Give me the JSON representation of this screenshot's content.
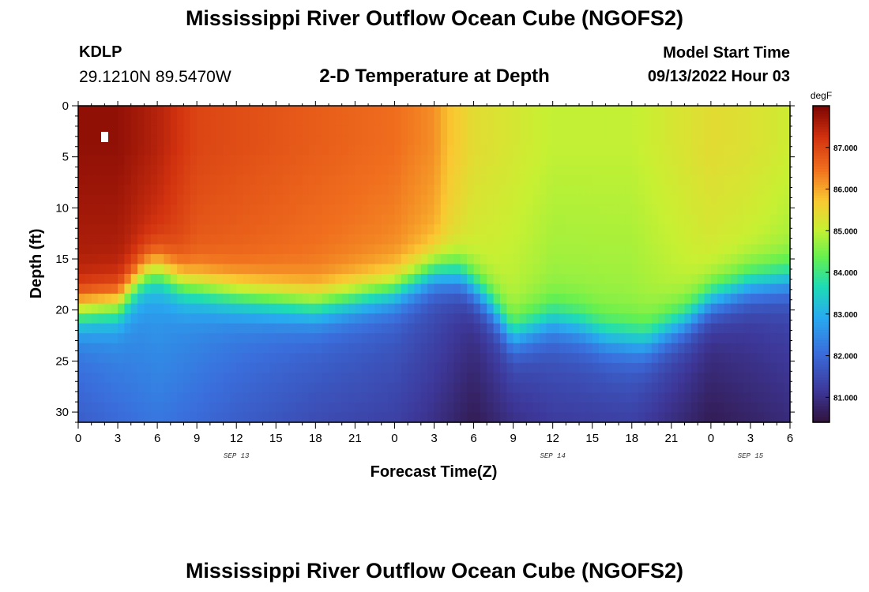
{
  "header": {
    "title": "Mississippi River Outflow Ocean Cube (NGOFS2)",
    "station_id": "KDLP",
    "station_coords": "29.1210N  89.5470W",
    "subtitle": "2-D Temperature at Depth",
    "start_label": "Model Start Time",
    "start_value": "09/13/2022 Hour 03"
  },
  "footer": {
    "title": "Mississippi River Outflow Ocean Cube (NGOFS2)"
  },
  "chart_data": {
    "type": "heatmap",
    "title": "2-D Temperature at Depth",
    "xlabel": "Forecast Time(Z)",
    "ylabel": "Depth (ft)",
    "x_range_hours": [
      0,
      54
    ],
    "y_range_ft": [
      0,
      31
    ],
    "x_tick_labels": [
      "0",
      "3",
      "6",
      "9",
      "12",
      "15",
      "18",
      "21",
      "0",
      "3",
      "6",
      "9",
      "12",
      "15",
      "18",
      "21",
      "0",
      "3",
      "6"
    ],
    "x_tick_hours": [
      0,
      3,
      6,
      9,
      12,
      15,
      18,
      21,
      24,
      27,
      30,
      33,
      36,
      39,
      42,
      45,
      48,
      51,
      54
    ],
    "date_labels": [
      {
        "hour": 12,
        "text": "SEP 13"
      },
      {
        "hour": 36,
        "text": "SEP 14"
      },
      {
        "hour": 51,
        "text": "SEP 15"
      }
    ],
    "y_ticks": [
      0,
      5,
      10,
      15,
      20,
      25,
      30
    ],
    "colorbar": {
      "units": "degF",
      "range": [
        80.4,
        88.0
      ],
      "ticks": [
        81.0,
        82.0,
        83.0,
        84.0,
        85.0,
        86.0,
        87.0
      ],
      "tick_labels": [
        "81.000",
        "82.000",
        "83.000",
        "84.000",
        "85.000",
        "86.000",
        "87.000"
      ]
    },
    "interface_depth_ft": {
      "hours": [
        0,
        3,
        5,
        6,
        8,
        12,
        18,
        24,
        27,
        29,
        31,
        33,
        35,
        36,
        38,
        40,
        43,
        46,
        48,
        51,
        54
      ],
      "depths": [
        20,
        19.5,
        16.5,
        16,
        17.5,
        18.5,
        19.5,
        18,
        16.2,
        16.5,
        19,
        22.5,
        21.5,
        21,
        21.5,
        22.5,
        23,
        21,
        19,
        17.5,
        17
      ]
    },
    "surface_temperature_degF": {
      "hours": [
        0,
        3,
        6,
        9,
        12,
        15,
        18,
        21,
        24,
        27,
        28,
        30,
        33,
        36,
        39,
        42,
        45,
        48,
        51,
        54
      ],
      "values": [
        87.8,
        87.8,
        87.5,
        87.0,
        86.9,
        86.8,
        86.7,
        86.6,
        86.5,
        86.2,
        85.8,
        85.4,
        85.2,
        85.0,
        85.0,
        85.0,
        85.2,
        85.4,
        85.3,
        85.1
      ]
    },
    "bottom_temperature_degF": {
      "hours": [
        0,
        6,
        12,
        18,
        24,
        27,
        30,
        33,
        36,
        42,
        48,
        54
      ],
      "values": [
        81.8,
        82.2,
        81.8,
        81.5,
        81.3,
        81.0,
        80.6,
        81.0,
        81.2,
        81.3,
        80.6,
        80.9
      ]
    }
  }
}
